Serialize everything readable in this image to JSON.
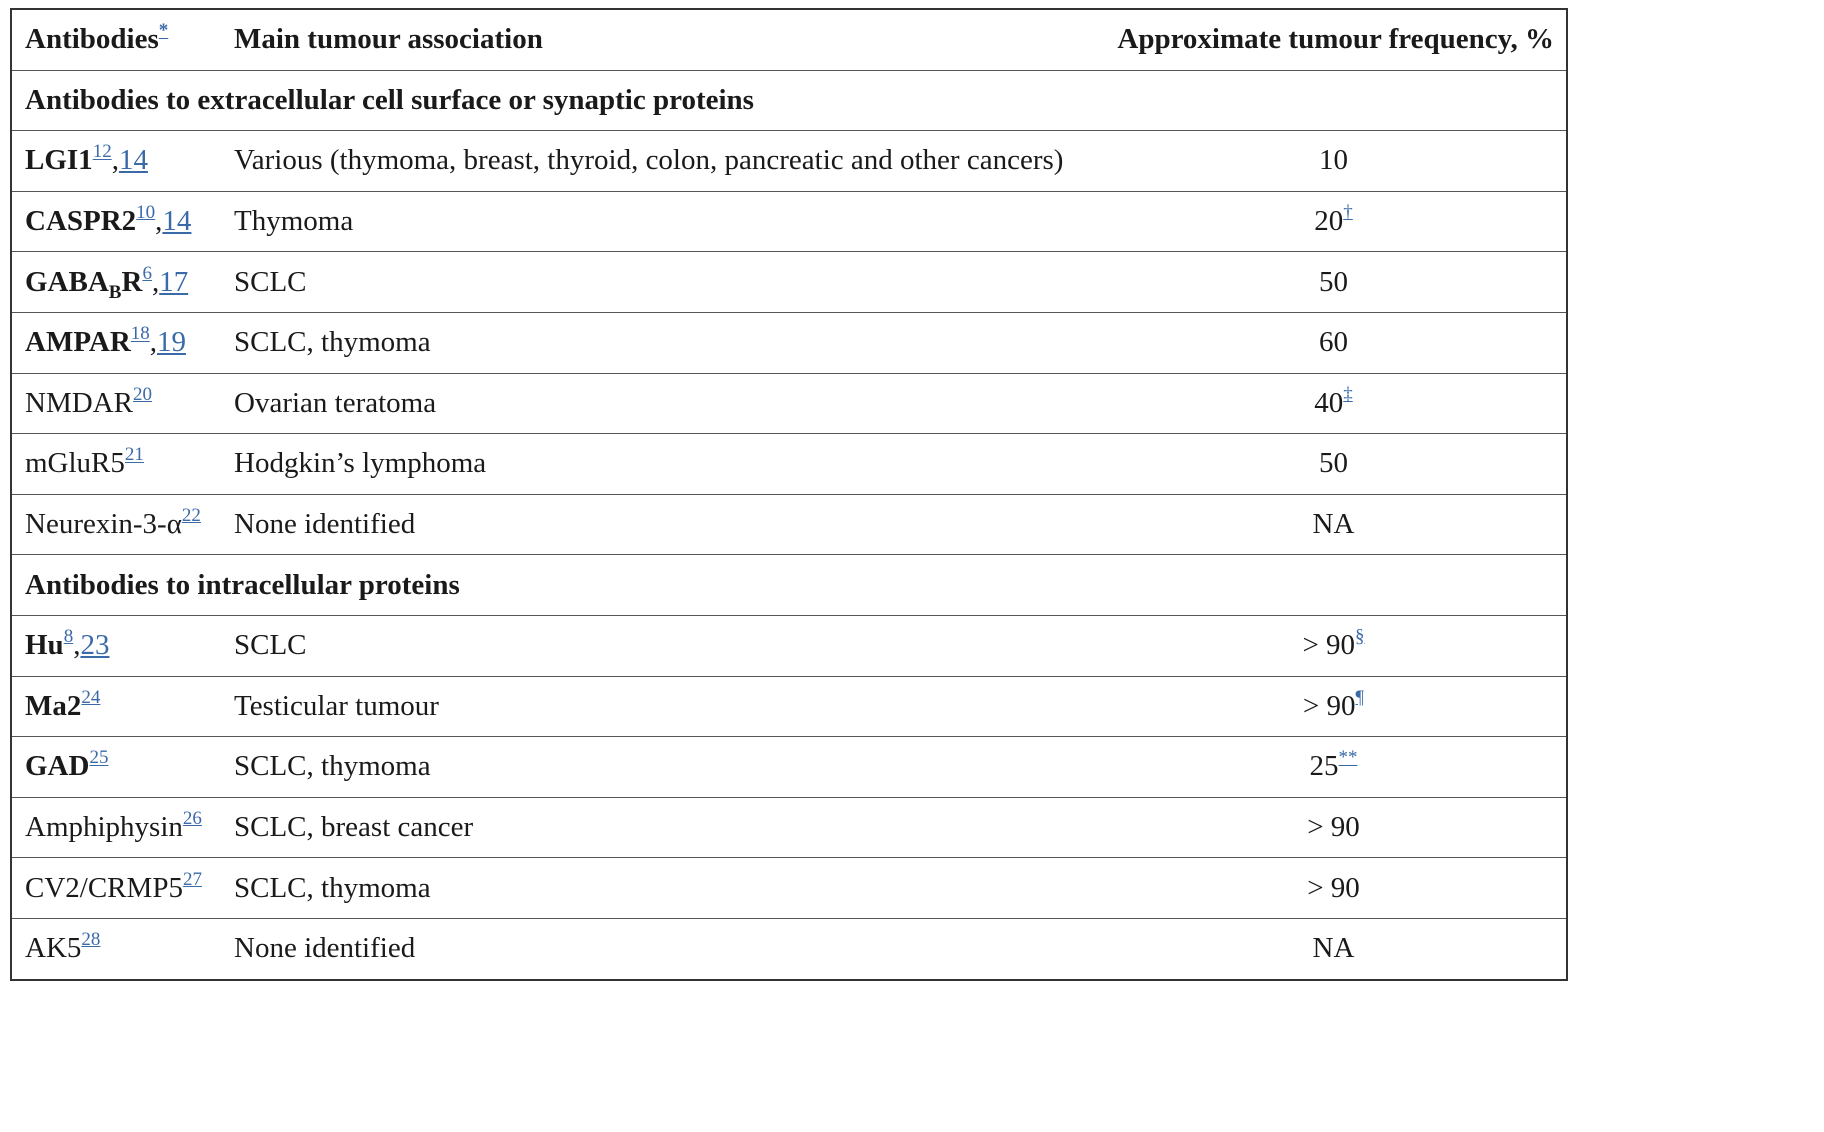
{
  "headers": {
    "antibodies": "Antibodies",
    "antibodies_note": "*",
    "tumour": "Main tumour association",
    "frequency": "Approximate tumour frequency, %"
  },
  "sections": [
    {
      "title": "Antibodies to extracellular cell surface or synaptic proteins",
      "rows": [
        {
          "name": "LGI1",
          "bold": true,
          "refs": [
            "12",
            "14"
          ],
          "tumour": "Various (thymoma, breast, thyroid, colon, pancreatic and other cancers)",
          "freq": "10",
          "freq_note": ""
        },
        {
          "name": "CASPR2",
          "bold": true,
          "refs": [
            "10",
            "14"
          ],
          "tumour": "Thymoma",
          "freq": "20",
          "freq_note": "†"
        },
        {
          "name": "GABA",
          "name_sub": "B",
          "name_suffix": "R",
          "bold": true,
          "refs": [
            "6",
            "17"
          ],
          "tumour": "SCLC",
          "freq": "50",
          "freq_note": ""
        },
        {
          "name": "AMPAR",
          "bold": true,
          "refs": [
            "18",
            "19"
          ],
          "tumour": "SCLC, thymoma",
          "freq": "60",
          "freq_note": ""
        },
        {
          "name": "NMDAR",
          "bold": false,
          "refs": [
            "20"
          ],
          "tumour": "Ovarian teratoma",
          "freq": "40",
          "freq_note": "‡"
        },
        {
          "name": "mGluR5",
          "bold": false,
          "refs": [
            "21"
          ],
          "tumour": "Hodgkin’s lymphoma",
          "freq": "50",
          "freq_note": ""
        },
        {
          "name": "Neurexin-3-α",
          "bold": false,
          "refs": [
            "22"
          ],
          "tumour": "None identified",
          "freq": "NA",
          "freq_note": ""
        }
      ]
    },
    {
      "title": "Antibodies to intracellular proteins",
      "rows": [
        {
          "name": "Hu",
          "bold": true,
          "refs": [
            "8",
            "23"
          ],
          "tumour": "SCLC",
          "freq": "> 90",
          "freq_note": "§"
        },
        {
          "name": "Ma2",
          "bold": true,
          "refs": [
            "24"
          ],
          "tumour": "Testicular tumour",
          "freq": "> 90",
          "freq_note": "¶"
        },
        {
          "name": "GAD",
          "bold": true,
          "refs": [
            "25"
          ],
          "tumour": "SCLC, thymoma",
          "freq": "25",
          "freq_note": "**"
        },
        {
          "name": "Amphiphysin",
          "bold": false,
          "refs": [
            "26"
          ],
          "tumour": "SCLC, breast cancer",
          "freq": "> 90",
          "freq_note": ""
        },
        {
          "name": "CV2/CRMP5",
          "bold": false,
          "refs": [
            "27"
          ],
          "tumour": "SCLC, thymoma",
          "freq": "> 90",
          "freq_note": ""
        },
        {
          "name": "AK5",
          "bold": false,
          "refs": [
            "28"
          ],
          "tumour": "None identified",
          "freq": "NA",
          "freq_note": ""
        }
      ]
    }
  ]
}
